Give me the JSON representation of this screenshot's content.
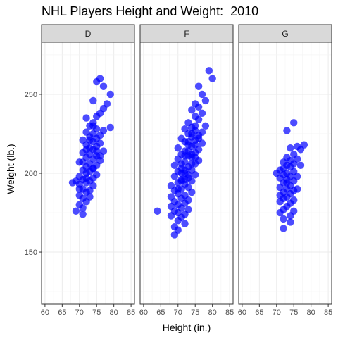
{
  "chart_data": {
    "type": "scatter",
    "title": "NHL Players Height and Weight:  2010",
    "xlabel": "Height (in.)",
    "ylabel": "Weight (lb.)",
    "xlim": [
      59,
      86
    ],
    "ylim": [
      117,
      283
    ],
    "x_ticks": [
      60,
      65,
      70,
      75,
      80,
      85
    ],
    "y_ticks": [
      150,
      200,
      250
    ],
    "grid": true,
    "point_color": "#0000ff",
    "panels": [
      {
        "name": "D",
        "points": [
          [
            76,
            260
          ],
          [
            75,
            258
          ],
          [
            77,
            255
          ],
          [
            79,
            250
          ],
          [
            74,
            246
          ],
          [
            78,
            244
          ],
          [
            77,
            241
          ],
          [
            76,
            238
          ],
          [
            75,
            236
          ],
          [
            72,
            235
          ],
          [
            74,
            232
          ],
          [
            73,
            230
          ],
          [
            79,
            229
          ],
          [
            75,
            228
          ],
          [
            77,
            227
          ],
          [
            72,
            226
          ],
          [
            74,
            225
          ],
          [
            76,
            224
          ],
          [
            73,
            223
          ],
          [
            75,
            222
          ],
          [
            71,
            221
          ],
          [
            74,
            220
          ],
          [
            76,
            219
          ],
          [
            72,
            218
          ],
          [
            75,
            217
          ],
          [
            73,
            216
          ],
          [
            74,
            215
          ],
          [
            77,
            214
          ],
          [
            71,
            213
          ],
          [
            73,
            212
          ],
          [
            75,
            211
          ],
          [
            72,
            210
          ],
          [
            74,
            209
          ],
          [
            76,
            208
          ],
          [
            70,
            207
          ],
          [
            73,
            206
          ],
          [
            75,
            205
          ],
          [
            72,
            204
          ],
          [
            74,
            203
          ],
          [
            71,
            202
          ],
          [
            73,
            201
          ],
          [
            72,
            200
          ],
          [
            75,
            199
          ],
          [
            70,
            198
          ],
          [
            74,
            197
          ],
          [
            71,
            196
          ],
          [
            73,
            195
          ],
          [
            69,
            195
          ],
          [
            72,
            194
          ],
          [
            68,
            194
          ],
          [
            70,
            193
          ],
          [
            74,
            192
          ],
          [
            71,
            190
          ],
          [
            73,
            189
          ],
          [
            72,
            188
          ],
          [
            70,
            186
          ],
          [
            73,
            185
          ],
          [
            71,
            184
          ],
          [
            72,
            182
          ],
          [
            70,
            180
          ],
          [
            71,
            178
          ],
          [
            69,
            176
          ],
          [
            71,
            174
          ],
          [
            70,
            190
          ],
          [
            72,
            215
          ],
          [
            74,
            230
          ],
          [
            75,
            214
          ],
          [
            73,
            221
          ],
          [
            76,
            211
          ],
          [
            74,
            203
          ],
          [
            71,
            207
          ],
          [
            72,
            197
          ]
        ]
      },
      {
        "name": "F",
        "points": [
          [
            79,
            265
          ],
          [
            80,
            260
          ],
          [
            76,
            255
          ],
          [
            77,
            250
          ],
          [
            78,
            246
          ],
          [
            75,
            244
          ],
          [
            76,
            242
          ],
          [
            74,
            240
          ],
          [
            77,
            238
          ],
          [
            75,
            236
          ],
          [
            76,
            234
          ],
          [
            73,
            232
          ],
          [
            78,
            230
          ],
          [
            74,
            229
          ],
          [
            72,
            228
          ],
          [
            75,
            227
          ],
          [
            77,
            226
          ],
          [
            73,
            225
          ],
          [
            76,
            224
          ],
          [
            74,
            223
          ],
          [
            71,
            222
          ],
          [
            75,
            221
          ],
          [
            72,
            220
          ],
          [
            77,
            219
          ],
          [
            73,
            218
          ],
          [
            74,
            217
          ],
          [
            70,
            216
          ],
          [
            76,
            215
          ],
          [
            72,
            214
          ],
          [
            75,
            213
          ],
          [
            71,
            212
          ],
          [
            73,
            211
          ],
          [
            74,
            210
          ],
          [
            70,
            209
          ],
          [
            76,
            208
          ],
          [
            72,
            207
          ],
          [
            75,
            206
          ],
          [
            69,
            205
          ],
          [
            73,
            204
          ],
          [
            71,
            203
          ],
          [
            74,
            202
          ],
          [
            70,
            201
          ],
          [
            72,
            200
          ],
          [
            75,
            199
          ],
          [
            69,
            198
          ],
          [
            73,
            197
          ],
          [
            71,
            196
          ],
          [
            74,
            195
          ],
          [
            70,
            194
          ],
          [
            72,
            193
          ],
          [
            68,
            192
          ],
          [
            73,
            191
          ],
          [
            71,
            190
          ],
          [
            69,
            189
          ],
          [
            74,
            188
          ],
          [
            70,
            187
          ],
          [
            72,
            186
          ],
          [
            68,
            185
          ],
          [
            71,
            184
          ],
          [
            73,
            183
          ],
          [
            69,
            182
          ],
          [
            72,
            181
          ],
          [
            70,
            180
          ],
          [
            68,
            179
          ],
          [
            71,
            178
          ],
          [
            73,
            177
          ],
          [
            69,
            176
          ],
          [
            64,
            176
          ],
          [
            70,
            175
          ],
          [
            72,
            174
          ],
          [
            68,
            173
          ],
          [
            71,
            172
          ],
          [
            70,
            170
          ],
          [
            72,
            168
          ],
          [
            69,
            166
          ],
          [
            70,
            164
          ],
          [
            69,
            161
          ],
          [
            75,
            218
          ],
          [
            74,
            206
          ],
          [
            73,
            214
          ],
          [
            72,
            202
          ],
          [
            71,
            195
          ],
          [
            76,
            222
          ],
          [
            75,
            210
          ],
          [
            73,
            199
          ],
          [
            70,
            190
          ],
          [
            74,
            225
          ],
          [
            72,
            211
          ],
          [
            71,
            206
          ],
          [
            75,
            230
          ],
          [
            73,
            220
          ],
          [
            71,
            200
          ],
          [
            72,
            196
          ],
          [
            74,
            212
          ]
        ]
      },
      {
        "name": "G",
        "points": [
          [
            75,
            232
          ],
          [
            73,
            227
          ],
          [
            78,
            218
          ],
          [
            76,
            217
          ],
          [
            74,
            216
          ],
          [
            77,
            215
          ],
          [
            75,
            212
          ],
          [
            73,
            210
          ],
          [
            76,
            209
          ],
          [
            74,
            208
          ],
          [
            72,
            207
          ],
          [
            75,
            206
          ],
          [
            73,
            205
          ],
          [
            77,
            205
          ],
          [
            74,
            204
          ],
          [
            72,
            203
          ],
          [
            71,
            202
          ],
          [
            75,
            201
          ],
          [
            70,
            200
          ],
          [
            73,
            200
          ],
          [
            72,
            199
          ],
          [
            74,
            198
          ],
          [
            76,
            198
          ],
          [
            71,
            197
          ],
          [
            73,
            196
          ],
          [
            75,
            195
          ],
          [
            72,
            194
          ],
          [
            74,
            192
          ],
          [
            71,
            191
          ],
          [
            73,
            190
          ],
          [
            75,
            189
          ],
          [
            72,
            188
          ],
          [
            74,
            187
          ],
          [
            71,
            186
          ],
          [
            73,
            185
          ],
          [
            72,
            184
          ],
          [
            75,
            183
          ],
          [
            71,
            182
          ],
          [
            74,
            181
          ],
          [
            73,
            179
          ],
          [
            72,
            177
          ],
          [
            75,
            176
          ],
          [
            71,
            175
          ],
          [
            74,
            173
          ],
          [
            72,
            171
          ],
          [
            74,
            169
          ],
          [
            72,
            165
          ],
          [
            76,
            190
          ],
          [
            73,
            194
          ]
        ]
      }
    ]
  }
}
